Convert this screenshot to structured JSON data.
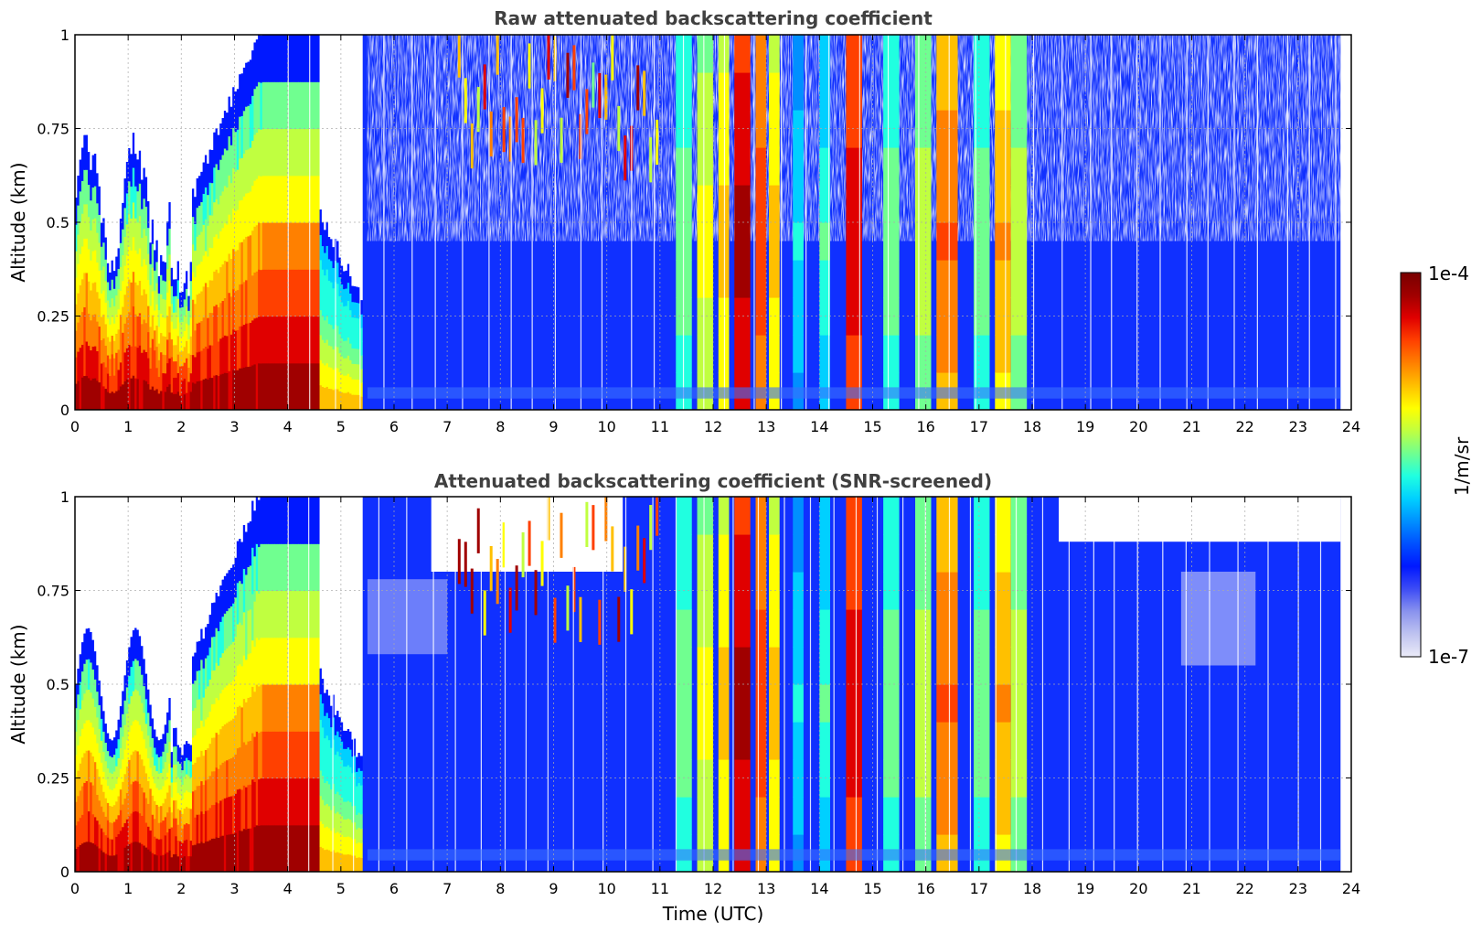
{
  "chart_data": [
    {
      "type": "heatmap",
      "title": "Raw attenuated backscattering coefficient",
      "xlabel": "",
      "ylabel": "Altitude (km)",
      "xlim": [
        0,
        24
      ],
      "ylim": [
        0,
        1
      ],
      "x_ticks": [
        "0",
        "1",
        "2",
        "3",
        "4",
        "5",
        "6",
        "7",
        "8",
        "9",
        "10",
        "11",
        "12",
        "13",
        "14",
        "15",
        "16",
        "17",
        "18",
        "19",
        "20",
        "21",
        "22",
        "23",
        "24"
      ],
      "y_ticks": [
        "0",
        "0.25",
        "0.5",
        "0.75",
        "1"
      ],
      "grid": true,
      "colorscale": "jet",
      "value_range": [
        1e-07,
        0.0001
      ],
      "z_scale": "log",
      "features": [
        {
          "label": "boundary layer aerosol",
          "t_start": 0,
          "t_end": 4.8,
          "top_km": 0.45,
          "level": "high"
        },
        {
          "label": "rising aerosol plume",
          "t_start": 2.0,
          "t_end": 5.4,
          "top_km": 1.0,
          "level": "high"
        },
        {
          "label": "fog/cloud columns",
          "t_start": 11.3,
          "t_end": 13.3,
          "top_km": 1.0,
          "level": "very high"
        },
        {
          "label": "cloud columns",
          "t_start": 14.0,
          "t_end": 14.8,
          "top_km": 1.0,
          "level": "high"
        },
        {
          "label": "cloud columns",
          "t_start": 16.0,
          "t_end": 17.9,
          "top_km": 1.0,
          "level": "high"
        },
        {
          "label": "clear-air noise",
          "t_start": 5.5,
          "t_end": 23.8,
          "top_km": 1.0,
          "level": "low"
        }
      ]
    },
    {
      "type": "heatmap",
      "title": "Attenuated backscattering coefficient (SNR-screened)",
      "xlabel": "Time (UTC)",
      "ylabel": "Altitude (km)",
      "xlim": [
        0,
        24
      ],
      "ylim": [
        0,
        1
      ],
      "x_ticks": [
        "0",
        "1",
        "2",
        "3",
        "4",
        "5",
        "6",
        "7",
        "8",
        "9",
        "10",
        "11",
        "12",
        "13",
        "14",
        "15",
        "16",
        "17",
        "18",
        "19",
        "20",
        "21",
        "22",
        "23",
        "24"
      ],
      "y_ticks": [
        "0",
        "0.25",
        "0.5",
        "0.75",
        "1"
      ],
      "grid": true,
      "colorscale": "jet",
      "value_range": [
        1e-07,
        0.0001
      ],
      "z_scale": "log",
      "features": [
        {
          "label": "boundary layer aerosol",
          "t_start": 0,
          "t_end": 4.8,
          "top_km": 0.6,
          "level": "high"
        },
        {
          "label": "screened-out region",
          "t_start": 0,
          "t_end": 2.0,
          "top_km": 1.0,
          "level": "none"
        },
        {
          "label": "fog/cloud columns",
          "t_start": 11.3,
          "t_end": 13.3,
          "top_km": 1.0,
          "level": "very high"
        },
        {
          "label": "cloud columns",
          "t_start": 16.0,
          "t_end": 17.9,
          "top_km": 1.0,
          "level": "high"
        },
        {
          "label": "clear air",
          "t_start": 5.5,
          "t_end": 23.8,
          "top_km": 0.85,
          "level": "low"
        }
      ]
    }
  ],
  "colorbar": {
    "label": "1/m/sr",
    "max_label": "1e-4",
    "min_label": "1e-7",
    "colors": [
      "#ebebf8",
      "#bfc3f0",
      "#8a93ee",
      "#3d4cf5",
      "#0018ff",
      "#0050ff",
      "#0090ff",
      "#00d0ff",
      "#20ffe0",
      "#70ff90",
      "#c0ff40",
      "#ffff00",
      "#ffc000",
      "#ff8000",
      "#ff4000",
      "#e00000",
      "#a00000",
      "#780000"
    ]
  }
}
